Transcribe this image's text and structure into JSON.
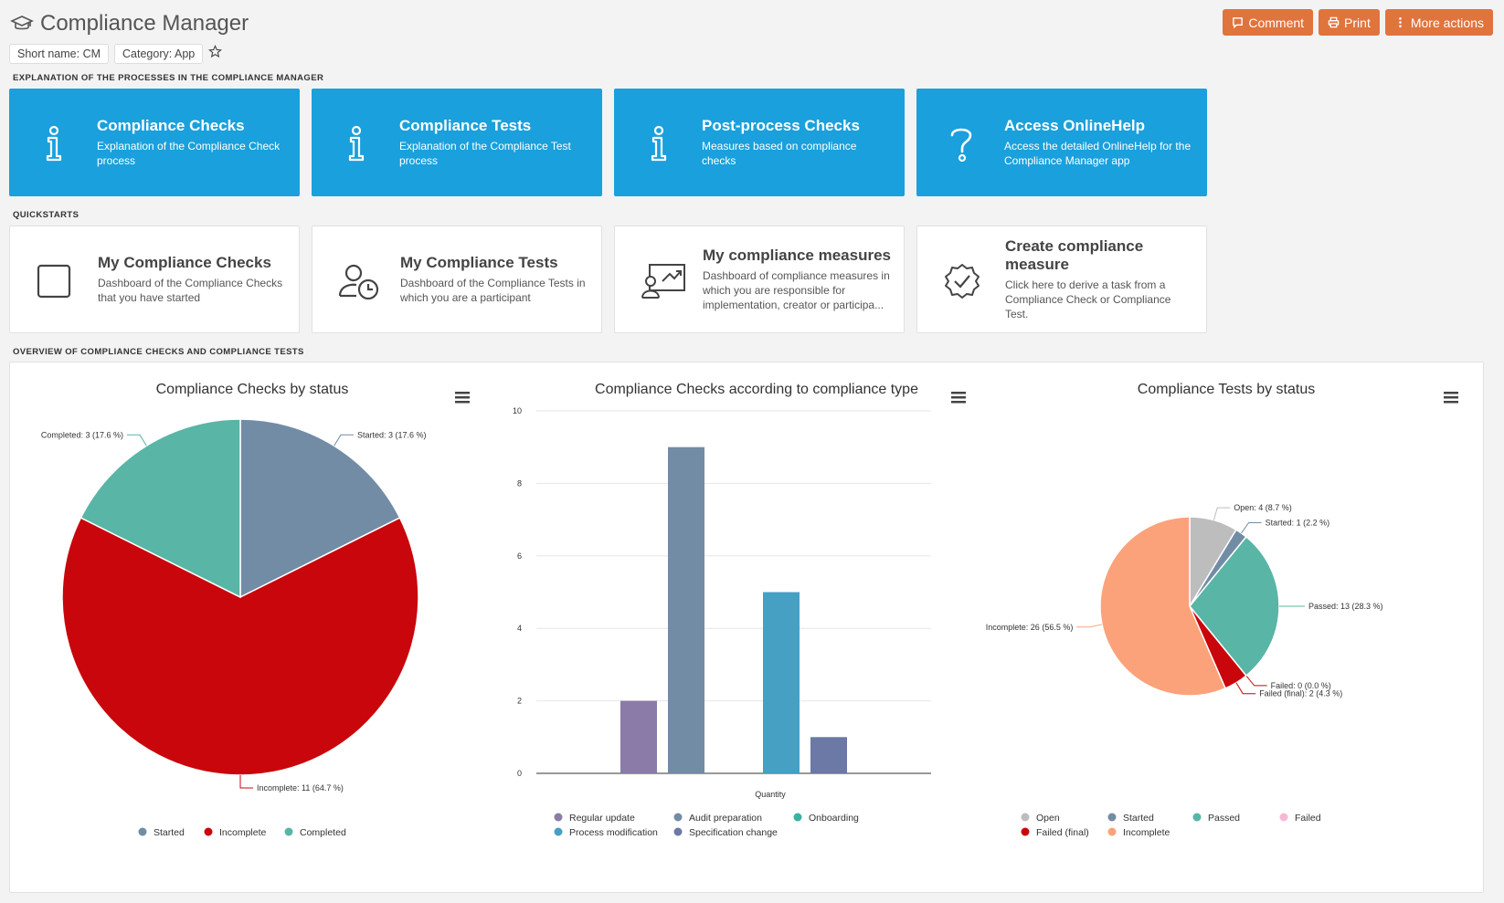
{
  "header": {
    "title": "Compliance Manager",
    "actions": {
      "comment": "Comment",
      "print": "Print",
      "more": "More actions"
    }
  },
  "chips": {
    "short_name": "Short name: CM",
    "category": "Category: App"
  },
  "sections": {
    "explanation": "EXPLANATION OF THE PROCESSES IN THE COMPLIANCE MANAGER",
    "quickstarts": "QUICKSTARTS",
    "overview": "OVERVIEW OF COMPLIANCE CHECKS AND COMPLIANCE TESTS"
  },
  "explanation_tiles": [
    {
      "title": "Compliance Checks",
      "desc": "Explanation of the Compliance Check process",
      "icon": "info-icon"
    },
    {
      "title": "Compliance Tests",
      "desc": "Explanation of the Compliance Test process",
      "icon": "info-icon"
    },
    {
      "title": "Post-process Checks",
      "desc": "Measures based on compliance checks",
      "icon": "info-icon"
    },
    {
      "title": "Access OnlineHelp",
      "desc": "Access the detailed OnlineHelp for the Compliance Manager app",
      "icon": "question-icon"
    }
  ],
  "quickstart_tiles": [
    {
      "title": "My Compliance Checks",
      "desc": "Dashboard of the Compliance Checks that you have started",
      "icon": "checkbox-icon"
    },
    {
      "title": "My Compliance Tests",
      "desc": "Dashboard of the Compliance Tests in which you are a participant",
      "icon": "user-clock-icon"
    },
    {
      "title": "My compliance measures",
      "desc": "Dashboard of compliance measures in which you are responsible for implementation, creator or participa...",
      "icon": "presentation-icon"
    },
    {
      "title": "Create compliance measure",
      "desc": "Click here to derive a task from a Compliance Check or Compliance Test.",
      "icon": "badge-check-icon"
    }
  ],
  "chart_data": [
    {
      "type": "pie",
      "title": "Compliance Checks by status",
      "slices": [
        {
          "name": "Started",
          "value": 3,
          "label": "Started: 3 (17.6 %)",
          "color": "#728ca6"
        },
        {
          "name": "Incomplete",
          "value": 11,
          "label": "Incomplete: 11 (64.7 %)",
          "color": "#c9060b"
        },
        {
          "name": "Completed",
          "value": 3,
          "label": "Completed: 3 (17.6 %)",
          "color": "#59b5a5"
        }
      ],
      "legend_position": "bottom"
    },
    {
      "type": "bar",
      "title": "Compliance Checks according to compliance type",
      "xlabel": "Quantity",
      "ylim": [
        0,
        10
      ],
      "yticks": [
        "0",
        "2",
        "4",
        "6",
        "8",
        "10"
      ],
      "grid": true,
      "series": [
        {
          "name": "Regular update",
          "value": 2,
          "color": "#8b7ba8"
        },
        {
          "name": "Audit preparation",
          "value": 9,
          "color": "#728ca6"
        },
        {
          "name": "Onboarding",
          "value": 0,
          "color": "#3bb0a4"
        },
        {
          "name": "Process modification",
          "value": 5,
          "color": "#45a0c4"
        },
        {
          "name": "Specification change",
          "value": 1,
          "color": "#6c78a6"
        }
      ],
      "legend_position": "bottom"
    },
    {
      "type": "pie",
      "title": "Compliance Tests by status",
      "slices": [
        {
          "name": "Open",
          "value": 4,
          "label": "Open: 4 (8.7 %)",
          "color": "#bdbdbd"
        },
        {
          "name": "Started",
          "value": 1,
          "label": "Started: 1 (2.2 %)",
          "color": "#728ca6"
        },
        {
          "name": "Passed",
          "value": 13,
          "label": "Passed: 13 (28.3 %)",
          "color": "#59b5a5"
        },
        {
          "name": "Failed",
          "value": 0,
          "label": "Failed: 0 (0.0 %)",
          "color": "#f7b8d6"
        },
        {
          "name": "Failed (final)",
          "value": 2,
          "label": "Failed (final): 2 (4.3 %)",
          "color": "#c9060b"
        },
        {
          "name": "Incomplete",
          "value": 26,
          "label": "Incomplete: 26 (56.5 %)",
          "color": "#fca27a"
        }
      ],
      "legend_position": "bottom"
    }
  ]
}
